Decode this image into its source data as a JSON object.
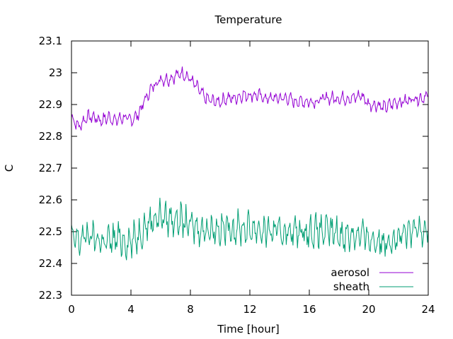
{
  "chart_data": {
    "type": "line",
    "title": "Temperature",
    "xlabel": "Time [hour]",
    "ylabel": "C",
    "xlim": [
      0,
      24
    ],
    "ylim": [
      22.3,
      23.1
    ],
    "xticks": [
      0,
      4,
      8,
      12,
      16,
      20,
      24
    ],
    "xtick_labels": [
      "0",
      "4",
      "8",
      "12",
      "16",
      "20",
      "24"
    ],
    "yticks": [
      22.3,
      22.4,
      22.5,
      22.6,
      22.7,
      22.8,
      22.9,
      23.0,
      23.1
    ],
    "ytick_labels": [
      "22.3",
      "22.4",
      "22.5",
      "22.6",
      "22.7",
      "22.8",
      "22.9",
      "23",
      "23.1"
    ],
    "grid": false,
    "legend_position": "bottom-right",
    "series": [
      {
        "name": "aerosol",
        "color": "#9400d3",
        "x": [
          0,
          0.5,
          1,
          1.5,
          2,
          2.5,
          3,
          3.5,
          4,
          4.5,
          5,
          5.5,
          6,
          6.5,
          7,
          7.5,
          8,
          8.5,
          9,
          9.5,
          10,
          10.5,
          11,
          11.5,
          12,
          12.5,
          13,
          13.5,
          14,
          14.5,
          15,
          15.5,
          16,
          16.5,
          17,
          17.5,
          18,
          18.5,
          19,
          19.5,
          20,
          20.5,
          21,
          21.5,
          22,
          22.5,
          23,
          23.5,
          24
        ],
        "y": [
          22.86,
          22.83,
          22.86,
          22.86,
          22.85,
          22.86,
          22.85,
          22.86,
          22.85,
          22.87,
          22.92,
          22.96,
          22.98,
          22.98,
          22.99,
          23.0,
          22.98,
          22.95,
          22.92,
          22.91,
          22.91,
          22.92,
          22.92,
          22.93,
          22.93,
          22.93,
          22.92,
          22.92,
          22.92,
          22.92,
          22.91,
          22.91,
          22.91,
          22.91,
          22.92,
          22.92,
          22.92,
          22.92,
          22.92,
          22.93,
          22.9,
          22.9,
          22.89,
          22.9,
          22.91,
          22.91,
          22.92,
          22.92,
          22.93
        ]
      },
      {
        "name": "sheath",
        "color": "#009e73",
        "x": [
          0,
          0.5,
          1,
          1.5,
          2,
          2.5,
          3,
          3.5,
          4,
          4.5,
          5,
          5.5,
          6,
          6.5,
          7,
          7.5,
          8,
          8.5,
          9,
          9.5,
          10,
          10.5,
          11,
          11.5,
          12,
          12.5,
          13,
          13.5,
          14,
          14.5,
          15,
          15.5,
          16,
          16.5,
          17,
          17.5,
          18,
          18.5,
          19,
          19.5,
          20,
          20.5,
          21,
          21.5,
          22,
          22.5,
          23,
          23.5,
          24
        ],
        "y": [
          22.48,
          22.47,
          22.49,
          22.48,
          22.47,
          22.47,
          22.48,
          22.47,
          22.47,
          22.49,
          22.52,
          22.54,
          22.55,
          22.54,
          22.54,
          22.53,
          22.52,
          22.51,
          22.51,
          22.51,
          22.51,
          22.51,
          22.51,
          22.51,
          22.51,
          22.51,
          22.5,
          22.5,
          22.5,
          22.5,
          22.5,
          22.5,
          22.5,
          22.5,
          22.5,
          22.5,
          22.49,
          22.49,
          22.49,
          22.49,
          22.48,
          22.47,
          22.47,
          22.48,
          22.48,
          22.49,
          22.5,
          22.51,
          22.52
        ]
      }
    ]
  }
}
